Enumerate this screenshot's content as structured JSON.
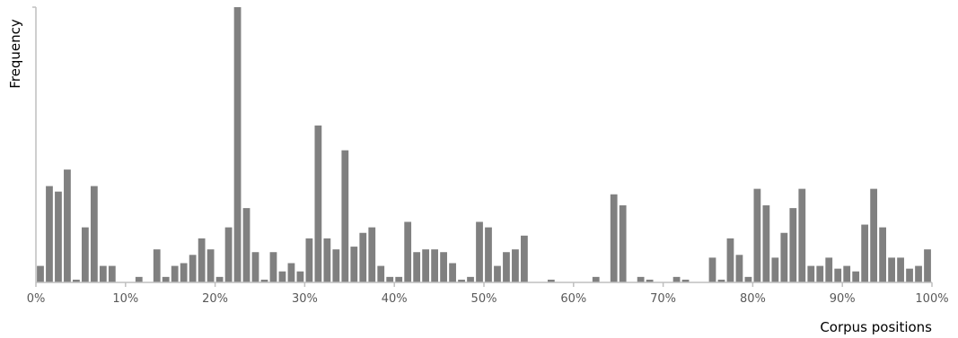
{
  "chart_data": {
    "type": "bar",
    "title": "",
    "xlabel": "Corpus positions",
    "ylabel": "Frequency",
    "x_ticks": [
      "0%",
      "10%",
      "20%",
      "30%",
      "40%",
      "50%",
      "60%",
      "70%",
      "80%",
      "90%",
      "100%"
    ],
    "xlim": [
      0,
      100
    ],
    "ylim": [
      0,
      100
    ],
    "grid": false,
    "legend": "none",
    "bar_color": "#808080",
    "axis_color": "#bfbfbf",
    "series": [
      {
        "values": [
          6,
          35,
          33,
          41,
          1,
          20,
          35,
          6,
          6,
          0,
          0,
          2,
          0,
          12,
          2,
          6,
          7,
          10,
          16,
          12,
          2,
          20,
          100,
          27,
          11,
          1,
          11,
          4,
          7,
          4,
          16,
          57,
          16,
          12,
          48,
          13,
          18,
          20,
          6,
          2,
          2,
          22,
          11,
          12,
          12,
          11,
          7,
          1,
          2,
          22,
          20,
          6,
          11,
          12,
          17,
          0,
          0,
          1,
          0,
          0,
          0,
          0,
          2,
          0,
          32,
          28,
          0,
          2,
          1,
          0,
          0,
          2,
          1,
          0,
          0,
          9,
          1,
          16,
          10,
          2,
          34,
          28,
          9,
          18,
          27,
          34,
          6,
          6,
          9,
          5,
          6,
          4,
          21,
          34,
          20,
          9,
          9,
          5,
          6,
          12
        ]
      }
    ]
  }
}
